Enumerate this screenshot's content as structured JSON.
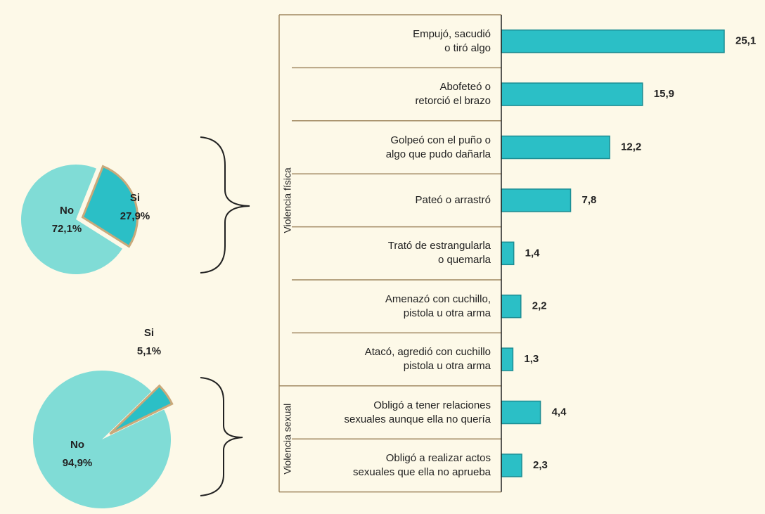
{
  "chart_data": [
    {
      "type": "pie",
      "categories": [
        "No",
        "Si"
      ],
      "values": [
        72.1,
        27.9
      ],
      "value_labels": [
        "72,1%",
        "27,9%"
      ],
      "colors": [
        "#80dcd6",
        "#2bbfc6"
      ]
    },
    {
      "type": "pie",
      "categories": [
        "No",
        "Si"
      ],
      "values": [
        94.9,
        5.1
      ],
      "value_labels": [
        "94,9%",
        "5,1%"
      ],
      "colors": [
        "#80dcd6",
        "#2bbfc6"
      ]
    },
    {
      "type": "bar",
      "orientation": "horizontal",
      "color": "#2bbfc6",
      "xlim": [
        0,
        25.1
      ],
      "groups": [
        {
          "name": "Violencia física",
          "categories": [
            "Empujó, sacudió\no tiró algo",
            "Abofeteó o\nretorció el brazo",
            "Golpeó con el puño o\nalgo que pudo dañarla",
            "Pateó o arrastró",
            "Trató de estrangularla\no quemarla",
            "Amenazó con cuchillo,\npistola u otra arma",
            "Atacó, agredió con cuchillo\npistola u otra arma"
          ],
          "values": [
            25.1,
            15.9,
            12.2,
            7.8,
            1.4,
            2.2,
            1.3
          ],
          "value_labels": [
            "25,1",
            "15,9",
            "12,2",
            "7,8",
            "1,4",
            "2,2",
            "1,3"
          ]
        },
        {
          "name": "Violencia sexual",
          "categories": [
            "Obligó a tener relaciones\nsexuales aunque ella no quería",
            "Obligó a realizar actos\nsexuales que ella no aprueba"
          ],
          "values": [
            4.4,
            2.3
          ],
          "value_labels": [
            "4,4",
            "2,3"
          ]
        }
      ]
    }
  ]
}
